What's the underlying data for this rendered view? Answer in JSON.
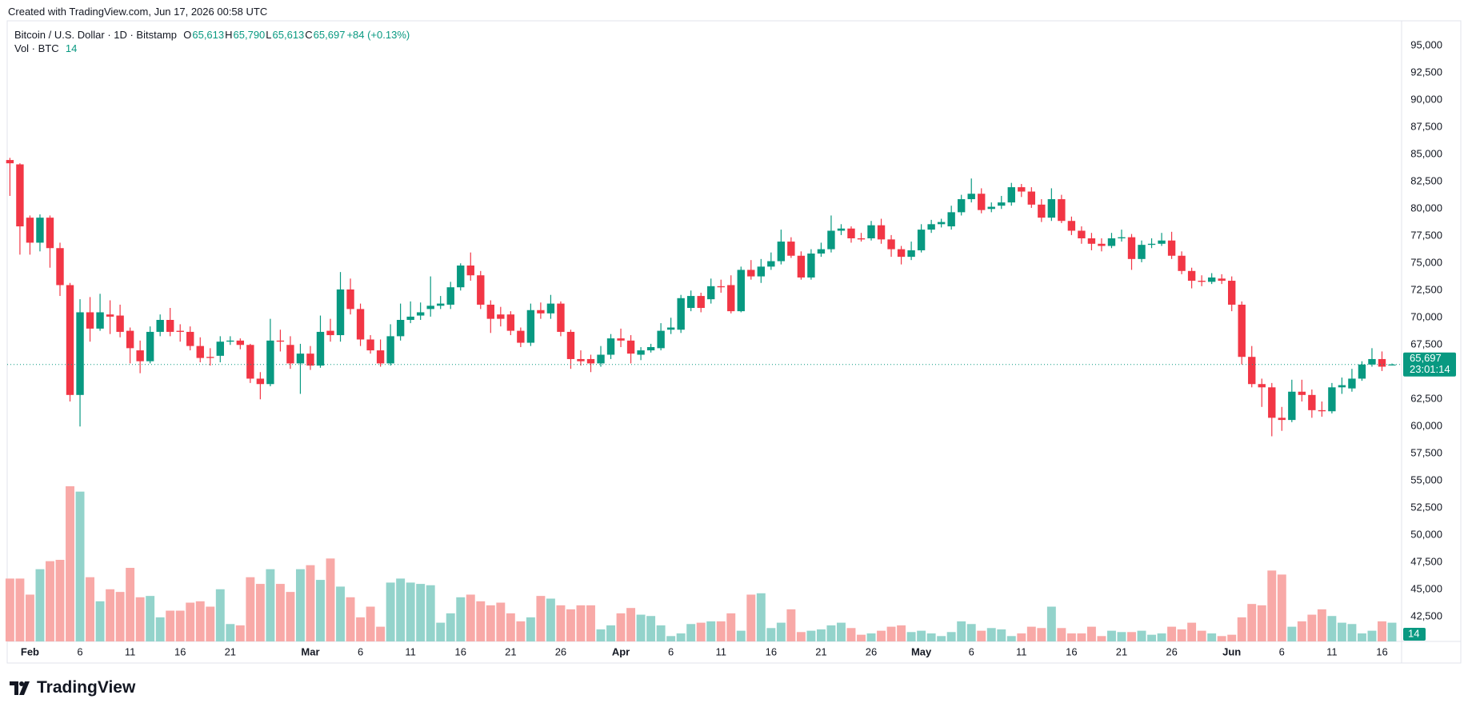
{
  "header": {
    "created": "Created with TradingView.com, Jun 17, 2026 00:58 UTC"
  },
  "chart_data": {
    "type": "candlestick",
    "legend": {
      "symbol": "Bitcoin / U.S. Dollar · 1D · Bitstamp",
      "items": [
        {
          "key": "O",
          "value": "65,613"
        },
        {
          "key": "H",
          "value": "65,790"
        },
        {
          "key": "L",
          "value": "65,613"
        },
        {
          "key": "C",
          "value": "65,697"
        }
      ],
      "change": "+84 (+0.13%)"
    },
    "countdown": "23:01:14",
    "x": [
      "01-30",
      "01-31",
      "02-01",
      "02-02",
      "02-03",
      "02-04",
      "02-05",
      "02-06",
      "02-07",
      "02-08",
      "02-09",
      "02-10",
      "02-11",
      "02-12",
      "02-13",
      "02-14",
      "02-15",
      "02-16",
      "02-17",
      "02-18",
      "02-19",
      "02-20",
      "02-21",
      "02-22",
      "02-23",
      "02-24",
      "02-25",
      "02-26",
      "02-27",
      "02-28",
      "03-01",
      "03-02",
      "03-03",
      "03-04",
      "03-05",
      "03-06",
      "03-07",
      "03-08",
      "03-09",
      "03-10",
      "03-11",
      "03-12",
      "03-13",
      "03-14",
      "03-15",
      "03-16",
      "03-17",
      "03-18",
      "03-19",
      "03-20",
      "03-21",
      "03-22",
      "03-23",
      "03-24",
      "03-25",
      "03-26",
      "03-27",
      "03-28",
      "03-29",
      "03-30",
      "03-31",
      "04-01",
      "04-02",
      "04-03",
      "04-04",
      "04-05",
      "04-06",
      "04-07",
      "04-08",
      "04-09",
      "04-10",
      "04-11",
      "04-12",
      "04-13",
      "04-14",
      "04-15",
      "04-16",
      "04-17",
      "04-18",
      "04-19",
      "04-20",
      "04-21",
      "04-22",
      "04-23",
      "04-24",
      "04-25",
      "04-26",
      "04-27",
      "04-28",
      "04-29",
      "04-30",
      "05-01",
      "05-02",
      "05-03",
      "05-04",
      "05-05",
      "05-06",
      "05-07",
      "05-08",
      "05-09",
      "05-10",
      "05-11",
      "05-12",
      "05-13",
      "05-14",
      "05-15",
      "05-16",
      "05-17",
      "05-18",
      "05-19",
      "05-20",
      "05-21",
      "05-22",
      "05-23",
      "05-24",
      "05-25",
      "05-26",
      "05-27",
      "05-28",
      "05-29",
      "05-30",
      "05-31",
      "06-01",
      "06-02",
      "06-03",
      "06-04",
      "06-05",
      "06-06",
      "06-07",
      "06-08",
      "06-09",
      "06-10",
      "06-11",
      "06-12",
      "06-13",
      "06-14",
      "06-15",
      "06-16",
      "06-17"
    ],
    "open": [
      84500,
      84100,
      79200,
      76900,
      79200,
      76400,
      73000,
      62900,
      70500,
      69000,
      70300,
      70200,
      68800,
      67000,
      66000,
      68700,
      69800,
      68800,
      68700,
      67400,
      66400,
      66500,
      67800,
      67900,
      67500,
      64400,
      63900,
      67900,
      67500,
      65800,
      66700,
      65600,
      68800,
      68400,
      72600,
      70800,
      68000,
      67000,
      65800,
      68300,
      69800,
      70200,
      70800,
      71100,
      71200,
      72800,
      74800,
      73900,
      71200,
      70300,
      70300,
      68800,
      67700,
      70700,
      70400,
      71300,
      68700,
      66200,
      66200,
      65800,
      66600,
      68100,
      67900,
      66600,
      67000,
      67200,
      68900,
      68900,
      70900,
      72000,
      71700,
      72900,
      73000,
      70600,
      74400,
      73800,
      74700,
      75200,
      77000,
      75700,
      73700,
      75900,
      76300,
      78000,
      78200,
      77300,
      77300,
      78500,
      77200,
      76300,
      75600,
      76200,
      78100,
      78600,
      78400,
      79700,
      80900,
      81400,
      80000,
      80300,
      80600,
      82000,
      81600,
      80400,
      79200,
      80900,
      78900,
      78000,
      77300,
      76800,
      76600,
      77300,
      77400,
      75400,
      76700,
      76800,
      77100,
      75700,
      74300,
      73400,
      73300,
      73600,
      73400,
      71200,
      66400,
      63900,
      63600,
      60800,
      60600,
      63200,
      62900,
      61500,
      61400,
      63600,
      63500,
      64400,
      65700,
      66200,
      65613
    ],
    "high": [
      84700,
      84200,
      79400,
      79500,
      79400,
      76900,
      73200,
      71700,
      71900,
      72200,
      71600,
      71200,
      69100,
      67900,
      69200,
      70300,
      70900,
      69400,
      69200,
      68200,
      67200,
      68300,
      68300,
      68100,
      67600,
      65000,
      69900,
      68900,
      68300,
      67600,
      67400,
      70200,
      69900,
      74200,
      73600,
      71300,
      68400,
      68000,
      69400,
      71300,
      71500,
      71400,
      73800,
      72000,
      73300,
      75000,
      76000,
      74300,
      71600,
      71000,
      70600,
      69100,
      71300,
      71400,
      72100,
      71500,
      68900,
      67000,
      66600,
      67400,
      68500,
      69000,
      68400,
      67300,
      67600,
      69500,
      70000,
      72100,
      72500,
      72300,
      73600,
      73500,
      73900,
      74700,
      75300,
      75400,
      76000,
      78100,
      77400,
      76100,
      76300,
      76900,
      79400,
      78600,
      78400,
      77800,
      78900,
      79100,
      77600,
      76600,
      77000,
      78600,
      79000,
      79100,
      80300,
      81300,
      82800,
      81900,
      80600,
      81200,
      82400,
      82300,
      82000,
      80900,
      81900,
      81300,
      79300,
      78400,
      77800,
      77300,
      77800,
      78100,
      77700,
      77100,
      77300,
      77800,
      77900,
      76100,
      74600,
      73900,
      74100,
      74000,
      73800,
      71500,
      67400,
      64400,
      64000,
      61800,
      64300,
      64300,
      63400,
      62300,
      64000,
      64500,
      65300,
      66000,
      67200,
      66900,
      65790
    ],
    "low": [
      81200,
      75800,
      75800,
      76100,
      74600,
      72000,
      62300,
      60000,
      67800,
      68800,
      68500,
      68200,
      65800,
      64900,
      65800,
      68300,
      68300,
      67800,
      67000,
      65900,
      65600,
      65900,
      67500,
      67100,
      64000,
      62500,
      63700,
      66900,
      65300,
      63000,
      65200,
      65400,
      67800,
      67800,
      70300,
      67400,
      66700,
      65500,
      65600,
      67900,
      69500,
      69800,
      70100,
      70800,
      70800,
      72500,
      73400,
      70800,
      68600,
      69200,
      68400,
      67300,
      67400,
      69900,
      69900,
      68300,
      65300,
      65600,
      65000,
      65500,
      66200,
      67300,
      65800,
      66100,
      66800,
      67000,
      68500,
      68600,
      70600,
      70500,
      71300,
      72300,
      70400,
      70500,
      73500,
      73200,
      74400,
      74900,
      75500,
      73500,
      73500,
      75600,
      76000,
      77600,
      76900,
      77000,
      77100,
      76800,
      75600,
      74900,
      75300,
      76000,
      77800,
      78300,
      78100,
      79400,
      80600,
      79600,
      79700,
      80000,
      80300,
      81100,
      80100,
      78800,
      78900,
      78700,
      77600,
      76800,
      76200,
      76100,
      76400,
      77000,
      74400,
      75100,
      76400,
      76600,
      75400,
      74000,
      72700,
      72900,
      73100,
      73100,
      70600,
      65700,
      63600,
      61800,
      59100,
      59600,
      60400,
      62300,
      60800,
      60900,
      61200,
      63000,
      63200,
      64200,
      65500,
      65100,
      65613
    ],
    "close": [
      84200,
      78400,
      76900,
      79200,
      76400,
      73000,
      62900,
      70500,
      69000,
      70500,
      70100,
      68700,
      67200,
      66000,
      68700,
      69800,
      68700,
      68700,
      67400,
      66300,
      66300,
      67800,
      67900,
      67500,
      64400,
      63900,
      67900,
      67800,
      65800,
      66700,
      65600,
      68700,
      68400,
      72600,
      70800,
      68000,
      67000,
      65800,
      68300,
      69800,
      70100,
      70500,
      71100,
      71300,
      72800,
      74800,
      73900,
      71200,
      69900,
      69900,
      68800,
      67700,
      70700,
      70400,
      71300,
      68700,
      66200,
      66000,
      65800,
      66600,
      68100,
      67900,
      66700,
      67000,
      67300,
      68800,
      69100,
      71800,
      72000,
      70900,
      72900,
      72800,
      70600,
      74400,
      73800,
      74700,
      75200,
      77000,
      75700,
      73700,
      75900,
      76300,
      78000,
      78200,
      77300,
      77200,
      78500,
      77200,
      76300,
      75600,
      76200,
      78100,
      78600,
      78800,
      79700,
      80900,
      81400,
      79900,
      80200,
      80600,
      82000,
      81600,
      80400,
      79200,
      80900,
      78900,
      78000,
      77300,
      76800,
      76600,
      77300,
      77400,
      75400,
      76700,
      76800,
      77100,
      75700,
      74300,
      73400,
      73300,
      73700,
      73400,
      71200,
      66400,
      63900,
      63600,
      60800,
      60600,
      63200,
      62900,
      61500,
      61400,
      63600,
      63800,
      64400,
      65700,
      66200,
      65500,
      65697
    ],
    "up_color": "#089981",
    "down_color": "#f23645",
    "volume": {
      "name": "Vol · BTC",
      "up_color": "#93d3cb",
      "down_color": "#f8a9a7",
      "values": [
        47,
        47,
        35,
        54,
        60,
        61,
        116,
        112,
        48,
        30,
        39,
        37,
        55,
        33,
        34,
        18,
        23,
        23,
        29,
        30,
        26,
        39,
        13,
        12,
        48,
        43,
        54,
        43,
        37,
        54,
        57,
        46,
        62,
        41,
        33,
        18,
        26,
        11,
        44,
        47,
        44,
        43,
        42,
        14,
        21,
        33,
        35,
        30,
        27,
        29,
        21,
        15,
        18,
        34,
        32,
        27,
        24,
        27,
        27,
        9,
        12,
        21,
        25,
        20,
        19,
        12,
        4,
        6,
        13,
        14,
        15,
        15,
        21,
        8,
        35,
        36,
        10,
        14,
        24,
        7,
        8,
        9,
        12,
        14,
        10,
        5,
        6,
        8,
        11,
        12,
        7,
        8,
        6,
        4,
        7,
        15,
        13,
        8,
        10,
        9,
        4,
        6,
        11,
        10,
        26,
        10,
        6,
        6,
        11,
        4,
        8,
        7,
        7,
        8,
        5,
        6,
        11,
        9,
        14,
        8,
        6,
        4,
        5,
        18,
        28,
        27,
        53,
        50,
        11,
        15,
        20,
        24,
        19,
        14,
        13,
        6,
        8,
        15,
        14
      ]
    },
    "ylim": [
      40240,
      97300
    ],
    "yticks": [
      {
        "value": 95000,
        "label": "95,000"
      },
      {
        "value": 92500,
        "label": "92,500"
      },
      {
        "value": 90000,
        "label": "90,000"
      },
      {
        "value": 87500,
        "label": "87,500"
      },
      {
        "value": 85000,
        "label": "85,000"
      },
      {
        "value": 82500,
        "label": "82,500"
      },
      {
        "value": 80000,
        "label": "80,000"
      },
      {
        "value": 77500,
        "label": "77,500"
      },
      {
        "value": 75000,
        "label": "75,000"
      },
      {
        "value": 72500,
        "label": "72,500"
      },
      {
        "value": 70000,
        "label": "70,000"
      },
      {
        "value": 67500,
        "label": "67,500"
      },
      {
        "value": 65000,
        "label": "65,000"
      },
      {
        "value": 62500,
        "label": "62,500"
      },
      {
        "value": 60000,
        "label": "60,000"
      },
      {
        "value": 57500,
        "label": "57,500"
      },
      {
        "value": 55000,
        "label": "55,000"
      },
      {
        "value": 52500,
        "label": "52,500"
      },
      {
        "value": 50000,
        "label": "50,000"
      },
      {
        "value": 47500,
        "label": "47,500"
      },
      {
        "value": 45000,
        "label": "45,000"
      },
      {
        "value": 42500,
        "label": "42,500"
      }
    ],
    "xticks": [
      {
        "value": "02-01",
        "label": "Feb"
      },
      {
        "value": "02-06",
        "label": "6"
      },
      {
        "value": "02-11",
        "label": "11"
      },
      {
        "value": "02-16",
        "label": "16"
      },
      {
        "value": "02-21",
        "label": "21"
      },
      {
        "value": "03-01",
        "label": "Mar"
      },
      {
        "value": "03-06",
        "label": "6"
      },
      {
        "value": "03-11",
        "label": "11"
      },
      {
        "value": "03-16",
        "label": "16"
      },
      {
        "value": "03-21",
        "label": "21"
      },
      {
        "value": "03-26",
        "label": "26"
      },
      {
        "value": "04-01",
        "label": "Apr"
      },
      {
        "value": "04-06",
        "label": "6"
      },
      {
        "value": "04-11",
        "label": "11"
      },
      {
        "value": "04-16",
        "label": "16"
      },
      {
        "value": "04-21",
        "label": "21"
      },
      {
        "value": "04-26",
        "label": "26"
      },
      {
        "value": "05-01",
        "label": "May"
      },
      {
        "value": "05-06",
        "label": "6"
      },
      {
        "value": "05-11",
        "label": "11"
      },
      {
        "value": "05-16",
        "label": "16"
      },
      {
        "value": "05-21",
        "label": "21"
      },
      {
        "value": "05-26",
        "label": "26"
      },
      {
        "value": "06-01",
        "label": "Jun"
      },
      {
        "value": "06-06",
        "label": "6"
      },
      {
        "value": "06-11",
        "label": "11"
      },
      {
        "value": "06-16",
        "label": "16"
      }
    ],
    "grid": true
  },
  "footer": {
    "brand": "TradingView"
  }
}
